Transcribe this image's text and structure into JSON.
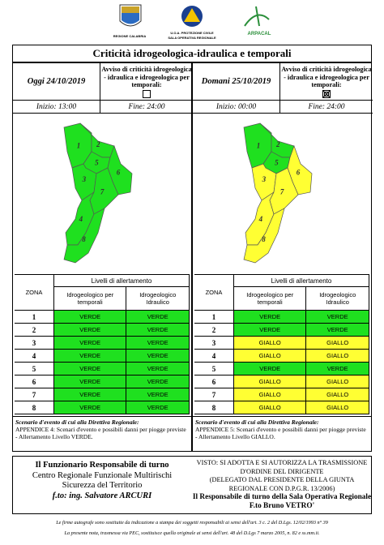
{
  "header": {
    "logos": [
      "REGIONE CALABRIA",
      "U.O.A. PROTEZIONE CIVILE",
      "SALA OPERATIVA REGIONALE",
      "ARPACAL"
    ]
  },
  "title": "Criticità idrogeologica-idraulica e temporali",
  "days": [
    {
      "date": "Oggi 24/10/2019",
      "notice": "Avviso di criticità idrogeologica - idraulica e idrogeologica per temporali:",
      "checked": false,
      "start": "Inizio: 13:00",
      "end": "Fine: 24:00",
      "zones": [
        "1",
        "2",
        "3",
        "4",
        "5",
        "6",
        "7",
        "8"
      ],
      "colors": [
        "#1fe01f",
        "#1fe01f",
        "#1fe01f",
        "#1fe01f",
        "#1fe01f",
        "#1fe01f",
        "#1fe01f",
        "#1fe01f"
      ],
      "table": {
        "title": "Livelli di allertamento",
        "zone_header": "ZONA",
        "columns": [
          "Idrogeologico per temporali",
          "Idrogeologico Idraulico"
        ],
        "rows": [
          [
            "1",
            "VERDE",
            "VERDE"
          ],
          [
            "2",
            "VERDE",
            "VERDE"
          ],
          [
            "3",
            "VERDE",
            "VERDE"
          ],
          [
            "4",
            "VERDE",
            "VERDE"
          ],
          [
            "5",
            "VERDE",
            "VERDE"
          ],
          [
            "6",
            "VERDE",
            "VERDE"
          ],
          [
            "7",
            "VERDE",
            "VERDE"
          ],
          [
            "8",
            "VERDE",
            "VERDE"
          ]
        ]
      },
      "scenario": {
        "title": "Scenario d'evento di cui alla Direttiva Regionale:",
        "text": "APPENDICE 4: Scenari d'evento e possibili danni per piogge previste - Allertamento Livello VERDE."
      }
    },
    {
      "date": "Domani 25/10/2019",
      "notice": "Avviso di criticità idrogeologica - idraulica e idrogeologica per temporali:",
      "checked": true,
      "start": "Inizio: 00:00",
      "end": "Fine: 24:00",
      "zones": [
        "1",
        "2",
        "3",
        "4",
        "5",
        "6",
        "7",
        "8"
      ],
      "colors": [
        "#1fe01f",
        "#1fe01f",
        "#ffff33",
        "#ffff33",
        "#1fe01f",
        "#ffff33",
        "#ffff33",
        "#ffff33"
      ],
      "table": {
        "title": "Livelli di allertamento",
        "zone_header": "ZONA",
        "columns": [
          "Idrogeologico per temporali",
          "Idrogeologico Idraulico"
        ],
        "rows": [
          [
            "1",
            "VERDE",
            "VERDE"
          ],
          [
            "2",
            "VERDE",
            "VERDE"
          ],
          [
            "3",
            "GIALLO",
            "GIALLO"
          ],
          [
            "4",
            "GIALLO",
            "GIALLO"
          ],
          [
            "5",
            "VERDE",
            "VERDE"
          ],
          [
            "6",
            "GIALLO",
            "GIALLO"
          ],
          [
            "7",
            "GIALLO",
            "GIALLO"
          ],
          [
            "8",
            "GIALLO",
            "GIALLO"
          ]
        ]
      },
      "scenario": {
        "title": "Scenario d'evento di cui alla Direttiva Regionale:",
        "text": "APPENDICE 5: Scenari d'evento e possibili danni per piogge previste - Allertamento Livello GIALLO."
      }
    }
  ],
  "signature": {
    "lines": [
      "Il Funzionario Responsabile di turno",
      "Centro Regionale Funzionale Multirischi",
      "Sicurezza del Territorio",
      "f.to: ing. Salvatore ARCURI"
    ]
  },
  "visa": {
    "lines": [
      "VISTO: SI ADOTTA E SI AUTORIZZA LA TRASMISSIONE",
      "D'ORDINE DEL DIRIGENTE",
      "(DELEGATO DAL PRESIDENTE DELLA GIUNTA",
      "REGIONALE CON D.P.G.R. 13/2006)",
      "Il Responsabile di turno della Sala Operativa Regionale",
      "F.to Bruno VETRO'"
    ]
  },
  "footer": [
    "Le firme autografe sono sostituite da indicazione a stampa dei soggetti responsabili ai sensi dell'art. 3 c. 2 del D.Lgs. 12/02/1993 n° 39",
    "La presente nota, trasmessa via PEC, sostituisce quella originale ai sensi dell'art. 48 del D.Lgs 7 marzo 2005, n. 82 e ss.mm.ii."
  ]
}
